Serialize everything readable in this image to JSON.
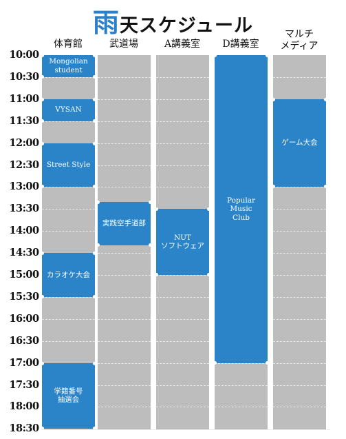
{
  "title": {
    "accent": "雨",
    "rest": "天スケジュール"
  },
  "columns": [
    {
      "id": "gym",
      "label": "体育館"
    },
    {
      "id": "budo",
      "label": "武道場"
    },
    {
      "id": "roomA",
      "label": "A講義室"
    },
    {
      "id": "roomD",
      "label": "D講義室"
    },
    {
      "id": "multi",
      "label": "マルチ\nメディア"
    }
  ],
  "time_slots": [
    "10:00",
    "10:30",
    "11:00",
    "11:30",
    "12:00",
    "12:30",
    "13:00",
    "13:30",
    "14:00",
    "14:30",
    "15:00",
    "15:30",
    "16:00",
    "16:30",
    "17:00",
    "17:30",
    "18:00",
    "18:30"
  ],
  "events": [
    {
      "column": 0,
      "start": "10:00",
      "end": "10:30",
      "label": "Mongolian\nstudent"
    },
    {
      "column": 0,
      "start": "11:00",
      "end": "11:30",
      "label": "VYSAN"
    },
    {
      "column": 0,
      "start": "12:00",
      "end": "13:00",
      "label": "Street Style"
    },
    {
      "column": 0,
      "start": "14:30",
      "end": "15:30",
      "label": "カラオケ大会"
    },
    {
      "column": 0,
      "start": "17:00",
      "end": "18:30",
      "label": "学籍番号\n抽選会"
    },
    {
      "column": 1,
      "start": "13:20",
      "end": "14:20",
      "label": "実践空手道部"
    },
    {
      "column": 2,
      "start": "13:30",
      "end": "15:00",
      "label": "NUT\nソフトウェア"
    },
    {
      "column": 3,
      "start": "10:00",
      "end": "17:00",
      "label": "Popular\nMusic\nClub"
    },
    {
      "column": 4,
      "start": "11:00",
      "end": "13:00",
      "label": "ゲーム大会"
    }
  ],
  "colors": {
    "event": "#2c84c8",
    "cell": "#bdbdbd",
    "accent": "#2c7fc9"
  }
}
